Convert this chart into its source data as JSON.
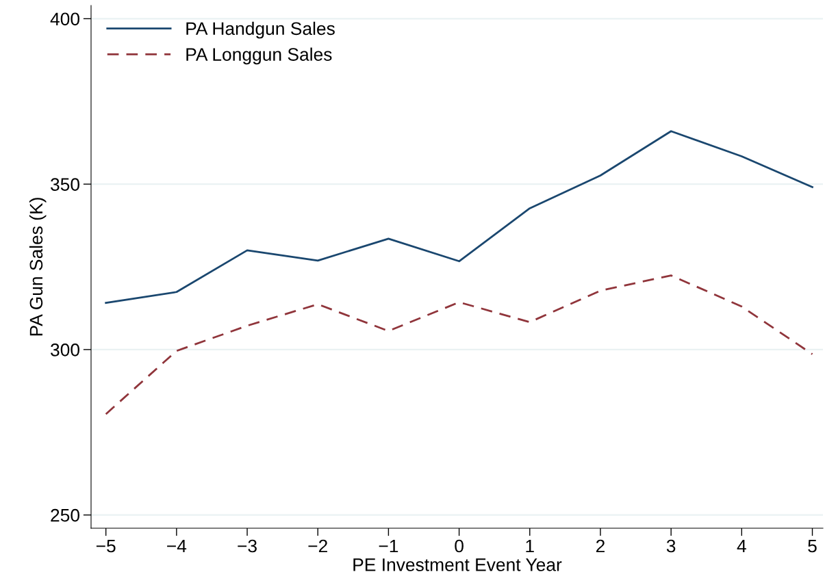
{
  "chart_data": {
    "type": "line",
    "xlabel": "PE Investment Event Year",
    "ylabel": "PA Gun Sales (K)",
    "x": [
      -5,
      -4,
      -3,
      -2,
      -1,
      0,
      1,
      2,
      3,
      4,
      5
    ],
    "series": [
      {
        "name": "PA Handgun Sales",
        "color": "#1a476f",
        "line_style": "solid",
        "values": [
          314.1,
          317.4,
          330.0,
          326.9,
          333.5,
          326.7,
          342.7,
          352.6,
          366.0,
          358.4,
          349.1
        ]
      },
      {
        "name": "PA Longgun Sales",
        "color": "#90353b",
        "line_style": "dashed",
        "values": [
          280.5,
          299.6,
          307.2,
          313.7,
          305.6,
          314.3,
          308.3,
          317.8,
          322.4,
          313.0,
          298.6
        ]
      }
    ],
    "xlim": [
      -5.21,
      5.15
    ],
    "ylim": [
      246,
      404
    ],
    "xticks": [
      {
        "value": -5,
        "label": "−5"
      },
      {
        "value": -4,
        "label": "−4"
      },
      {
        "value": -3,
        "label": "−3"
      },
      {
        "value": -2,
        "label": "−2"
      },
      {
        "value": -1,
        "label": "−1"
      },
      0,
      1,
      2,
      3,
      4,
      5
    ],
    "yticks": [
      250,
      300,
      350,
      400
    ],
    "grid": "y",
    "legend": "top left"
  }
}
